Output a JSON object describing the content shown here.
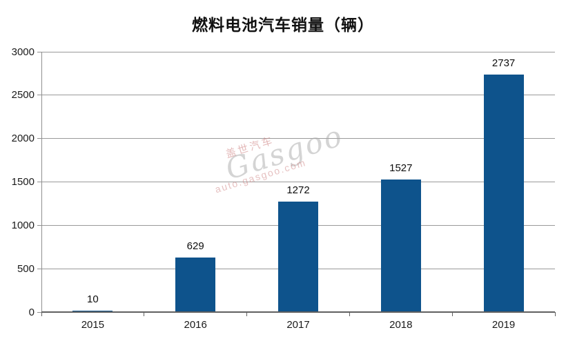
{
  "chart_data": {
    "type": "bar",
    "title": "燃料电池汽车销量（辆）",
    "categories": [
      "2015",
      "2016",
      "2017",
      "2018",
      "2019"
    ],
    "values": [
      10,
      629,
      1272,
      1527,
      2737
    ],
    "data_labels": [
      "10",
      "629",
      "1272",
      "1527",
      "2737"
    ],
    "xlabel": "",
    "ylabel": "",
    "ylim": [
      0,
      3000
    ],
    "yticks": [
      0,
      500,
      1000,
      1500,
      2000,
      2500,
      3000
    ],
    "grid": true,
    "legend": false,
    "bar_color": "#0E538C",
    "gridline_color": "#999999",
    "axis_color": "#5f5f5f",
    "text_color": "#1a1a1a"
  },
  "watermark": {
    "line1": "盖世汽车",
    "line2": "Gasgoo",
    "line3": "auto.gasgoo.com"
  }
}
